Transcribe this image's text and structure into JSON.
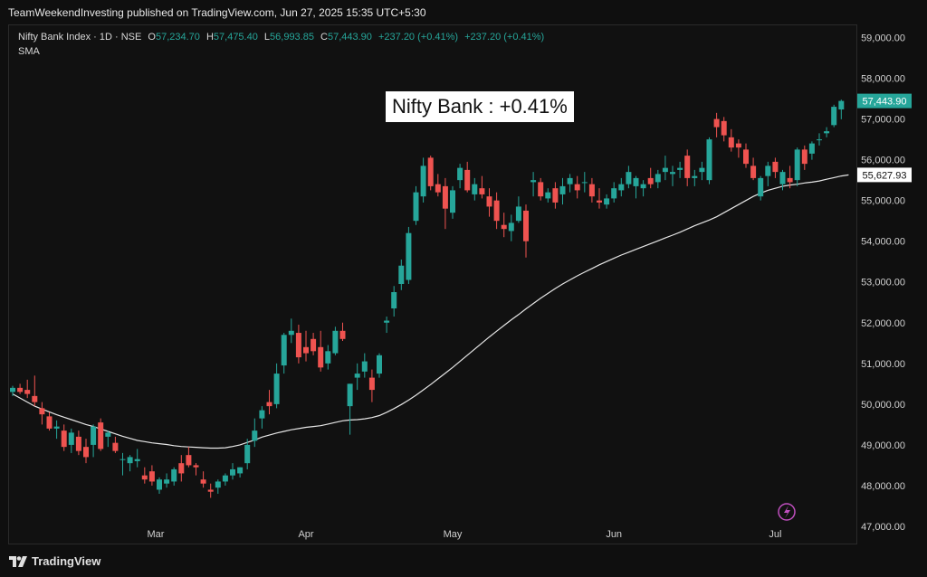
{
  "header": {
    "published": "TeamWeekendInvesting published on TradingView.com, Jun 27, 2025 15:35 UTC+5:30"
  },
  "legend": {
    "symbol": "Nifty Bank Index · 1D · NSE",
    "o_label": "O",
    "o_value": "57,234.70",
    "h_label": "H",
    "h_value": "57,475.40",
    "l_label": "L",
    "l_value": "56,993.85",
    "c_label": "C",
    "c_value": "57,443.90",
    "change1": "+237.20 (+0.41%)",
    "change2": "+237.20 (+0.41%)",
    "indicator": "SMA"
  },
  "headline": "Nifty Bank : +0.41%",
  "footer": {
    "brand": "TradingView"
  },
  "colors": {
    "up": "#26a69a",
    "down": "#ef5350",
    "sma": "#e6e6e6",
    "last_price_bg": "#26a69a",
    "sma_tag_bg": "#ffffff"
  },
  "chart_data": {
    "type": "candlestick",
    "title": "",
    "ylim": [
      46600,
      59300
    ],
    "y_ticks": [
      "47,000.00",
      "48,000.00",
      "49,000.00",
      "50,000.00",
      "51,000.00",
      "52,000.00",
      "53,000.00",
      "54,000.00",
      "55,000.00",
      "56,000.00",
      "57,000.00",
      "58,000.00",
      "59,000.00"
    ],
    "y_tick_values": [
      47000,
      48000,
      49000,
      50000,
      51000,
      52000,
      53000,
      54000,
      55000,
      56000,
      57000,
      58000,
      59000
    ],
    "x_ticks": [
      "Mar",
      "Apr",
      "May",
      "Jun",
      "Jul"
    ],
    "x_tick_index": [
      19.5,
      40,
      60,
      82,
      104
    ],
    "last_price_label": "57,443.90",
    "last_price": 57443.9,
    "sma_last_label": "55,627.93",
    "sma_last": 55627.93,
    "candles": [
      [
        50300,
        50450,
        50200,
        50400
      ],
      [
        50400,
        50500,
        50250,
        50300
      ],
      [
        50350,
        50600,
        50150,
        50250
      ],
      [
        50200,
        50700,
        49950,
        50050
      ],
      [
        49900,
        50050,
        49500,
        49750
      ],
      [
        49700,
        49800,
        49350,
        49400
      ],
      [
        49400,
        49600,
        49150,
        49450
      ],
      [
        49350,
        49500,
        48850,
        48950
      ],
      [
        49000,
        49400,
        48800,
        49300
      ],
      [
        49200,
        49350,
        48750,
        48850
      ],
      [
        48950,
        49150,
        48550,
        48700
      ],
      [
        49000,
        49500,
        48700,
        49450
      ],
      [
        49550,
        49650,
        48850,
        48900
      ],
      [
        49200,
        49350,
        48950,
        49300
      ],
      [
        49050,
        49200,
        48800,
        48850
      ],
      [
        48650,
        48800,
        48250,
        48650
      ],
      [
        48550,
        48750,
        48350,
        48700
      ],
      [
        48600,
        48900,
        48450,
        48650
      ],
      [
        48250,
        48450,
        48050,
        48150
      ],
      [
        48350,
        48500,
        48000,
        48100
      ],
      [
        47900,
        48200,
        47800,
        48150
      ],
      [
        48050,
        48300,
        47950,
        48150
      ],
      [
        48100,
        48450,
        48000,
        48400
      ],
      [
        48550,
        48750,
        48100,
        48300
      ],
      [
        48750,
        48950,
        48450,
        48500
      ],
      [
        48500,
        48550,
        48250,
        48450
      ],
      [
        48150,
        48350,
        47950,
        48050
      ],
      [
        47900,
        48050,
        47700,
        47850
      ],
      [
        47950,
        48150,
        47800,
        48100
      ],
      [
        48100,
        48300,
        48000,
        48250
      ],
      [
        48250,
        48550,
        48150,
        48400
      ],
      [
        48300,
        48450,
        48200,
        48450
      ],
      [
        48550,
        49150,
        48400,
        49000
      ],
      [
        49100,
        49650,
        48950,
        49350
      ],
      [
        49650,
        49950,
        49400,
        49850
      ],
      [
        50050,
        50350,
        49750,
        49950
      ],
      [
        50000,
        51000,
        49900,
        50750
      ],
      [
        50950,
        51750,
        50750,
        51700
      ],
      [
        51700,
        52100,
        51500,
        51800
      ],
      [
        51750,
        51950,
        51000,
        51150
      ],
      [
        51400,
        51800,
        51050,
        51250
      ],
      [
        51600,
        51750,
        51200,
        51300
      ],
      [
        51400,
        51800,
        50800,
        50900
      ],
      [
        51000,
        51450,
        50850,
        51300
      ],
      [
        51250,
        51900,
        51200,
        51800
      ],
      [
        51800,
        52000,
        51550,
        51600
      ],
      [
        49950,
        50500,
        49250,
        50500
      ],
      [
        50650,
        51000,
        50350,
        50750
      ],
      [
        50800,
        51250,
        50650,
        51050
      ],
      [
        50650,
        50850,
        50050,
        50350
      ],
      [
        50750,
        51250,
        50650,
        51200
      ],
      [
        52000,
        52150,
        51750,
        52050
      ],
      [
        52350,
        52900,
        52150,
        52750
      ],
      [
        52950,
        53550,
        52800,
        53400
      ],
      [
        53050,
        54350,
        52950,
        54200
      ],
      [
        54500,
        55350,
        54400,
        55200
      ],
      [
        55100,
        56050,
        54950,
        55850
      ],
      [
        56050,
        56100,
        55250,
        55350
      ],
      [
        55400,
        55650,
        55100,
        55200
      ],
      [
        55350,
        55550,
        54300,
        54800
      ],
      [
        54700,
        55350,
        54550,
        55250
      ],
      [
        55500,
        55900,
        55300,
        55800
      ],
      [
        55750,
        55950,
        55200,
        55250
      ],
      [
        55150,
        55550,
        55000,
        55400
      ],
      [
        55300,
        55600,
        55050,
        55150
      ],
      [
        55100,
        55300,
        54600,
        54850
      ],
      [
        55000,
        55200,
        54300,
        54500
      ],
      [
        54400,
        54700,
        54100,
        54300
      ],
      [
        54250,
        54650,
        54000,
        54450
      ],
      [
        54500,
        55100,
        54450,
        54850
      ],
      [
        54750,
        54900,
        53600,
        54000
      ],
      [
        55450,
        55700,
        55100,
        55500
      ],
      [
        55450,
        55550,
        55000,
        55100
      ],
      [
        55050,
        55300,
        54950,
        55200
      ],
      [
        55300,
        55450,
        54800,
        54950
      ],
      [
        55150,
        55550,
        54900,
        55350
      ],
      [
        55400,
        55650,
        55200,
        55550
      ],
      [
        55400,
        55600,
        55050,
        55250
      ],
      [
        55450,
        55700,
        55200,
        55450
      ],
      [
        55400,
        55550,
        54950,
        55100
      ],
      [
        55000,
        55300,
        54800,
        54950
      ],
      [
        54900,
        55150,
        54800,
        55050
      ],
      [
        55050,
        55450,
        54950,
        55300
      ],
      [
        55250,
        55550,
        55100,
        55400
      ],
      [
        55400,
        55850,
        55300,
        55700
      ],
      [
        55350,
        55600,
        55050,
        55550
      ],
      [
        55300,
        55500,
        55100,
        55400
      ],
      [
        55550,
        55800,
        55300,
        55400
      ],
      [
        55450,
        55750,
        55300,
        55650
      ],
      [
        55700,
        56100,
        55500,
        55800
      ],
      [
        55650,
        55850,
        55350,
        55700
      ],
      [
        55750,
        55950,
        55550,
        55800
      ],
      [
        56100,
        56250,
        55350,
        55550
      ],
      [
        55550,
        55750,
        55350,
        55600
      ],
      [
        55700,
        55950,
        55500,
        55800
      ],
      [
        55500,
        56550,
        55400,
        56500
      ],
      [
        57000,
        57150,
        56550,
        56800
      ],
      [
        56950,
        57050,
        56450,
        56600
      ],
      [
        56550,
        56750,
        56200,
        56300
      ],
      [
        56400,
        56500,
        56050,
        56300
      ],
      [
        56250,
        56400,
        55800,
        55900
      ],
      [
        55850,
        56050,
        55500,
        55550
      ],
      [
        55100,
        55600,
        55000,
        55550
      ],
      [
        55600,
        55950,
        55350,
        55850
      ],
      [
        55950,
        56050,
        55550,
        55700
      ],
      [
        55400,
        55750,
        55250,
        55700
      ],
      [
        55550,
        55850,
        55300,
        55450
      ],
      [
        55500,
        56300,
        55350,
        56250
      ],
      [
        56250,
        56350,
        55750,
        55900
      ],
      [
        56150,
        56450,
        56000,
        56400
      ],
      [
        56500,
        56650,
        56350,
        56500
      ],
      [
        56650,
        56800,
        56550,
        56700
      ],
      [
        56850,
        57350,
        56800,
        57300
      ],
      [
        57234.7,
        57475.4,
        56993.85,
        57443.9
      ]
    ],
    "sma": [
      50250,
      50150,
      50050,
      49950,
      49880,
      49810,
      49740,
      49680,
      49620,
      49560,
      49500,
      49450,
      49390,
      49330,
      49270,
      49210,
      49160,
      49110,
      49080,
      49050,
      49030,
      49010,
      48980,
      48960,
      48950,
      48940,
      48930,
      48920,
      48920,
      48930,
      48960,
      49000,
      49060,
      49120,
      49190,
      49240,
      49290,
      49330,
      49370,
      49400,
      49430,
      49450,
      49470,
      49510,
      49550,
      49590,
      49610,
      49620,
      49640,
      49670,
      49720,
      49800,
      49890,
      49990,
      50100,
      50220,
      50350,
      50480,
      50620,
      50760,
      50900,
      51050,
      51200,
      51350,
      51500,
      51650,
      51790,
      51930,
      52070,
      52200,
      52340,
      52470,
      52600,
      52720,
      52840,
      52950,
      53050,
      53150,
      53240,
      53330,
      53420,
      53500,
      53580,
      53660,
      53730,
      53800,
      53870,
      53940,
      54010,
      54080,
      54150,
      54220,
      54300,
      54380,
      54450,
      54520,
      54600,
      54700,
      54800,
      54900,
      55000,
      55100,
      55180,
      55250,
      55300,
      55350,
      55380,
      55400,
      55430,
      55450,
      55480,
      55520,
      55560,
      55600,
      55627.93
    ]
  }
}
